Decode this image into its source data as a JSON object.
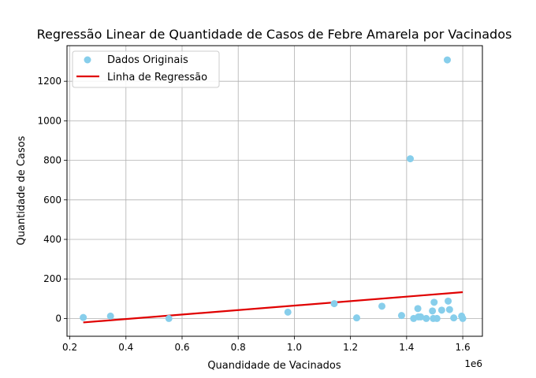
{
  "chart_data": {
    "type": "scatter",
    "title": "Regressão Linear de Quantidade de Casos de Febre Amarela por Vacinados",
    "xlabel": "Quandidade de Vacinados",
    "ylabel": "Quantidade de Casos",
    "x_offset_label": "1e6",
    "xlim": [
      0.19,
      1.67
    ],
    "ylim": [
      -90,
      1380
    ],
    "x_ticks": [
      0.2,
      0.4,
      0.6,
      0.8,
      1.0,
      1.2,
      1.4,
      1.6
    ],
    "x_tick_labels": [
      "0.2",
      "0.4",
      "0.6",
      "0.8",
      "1.0",
      "1.2",
      "1.4",
      "1.6"
    ],
    "y_ticks": [
      0,
      200,
      400,
      600,
      800,
      1000,
      1200
    ],
    "y_tick_labels": [
      "0",
      "200",
      "400",
      "600",
      "800",
      "1000",
      "1200"
    ],
    "grid": true,
    "legend_position": "upper-left",
    "series": [
      {
        "name": "Dados Originais",
        "kind": "scatter",
        "color": "#87CEEB",
        "points": [
          [
            0.248,
            5
          ],
          [
            0.345,
            12
          ],
          [
            0.553,
            0
          ],
          [
            0.977,
            32
          ],
          [
            1.142,
            75
          ],
          [
            1.222,
            3
          ],
          [
            1.312,
            62
          ],
          [
            1.382,
            15
          ],
          [
            1.413,
            808
          ],
          [
            1.425,
            0
          ],
          [
            1.44,
            50
          ],
          [
            1.442,
            8
          ],
          [
            1.45,
            8
          ],
          [
            1.47,
            0
          ],
          [
            1.492,
            38
          ],
          [
            1.495,
            0
          ],
          [
            1.498,
            82
          ],
          [
            1.508,
            0
          ],
          [
            1.525,
            42
          ],
          [
            1.545,
            1308
          ],
          [
            1.548,
            88
          ],
          [
            1.553,
            45
          ],
          [
            1.568,
            3
          ],
          [
            1.596,
            12
          ],
          [
            1.6,
            0
          ]
        ]
      },
      {
        "name": "Linha de Regressão",
        "kind": "line",
        "color": "#e00000",
        "points": [
          [
            0.248,
            -20
          ],
          [
            1.6,
            133
          ]
        ]
      }
    ]
  }
}
